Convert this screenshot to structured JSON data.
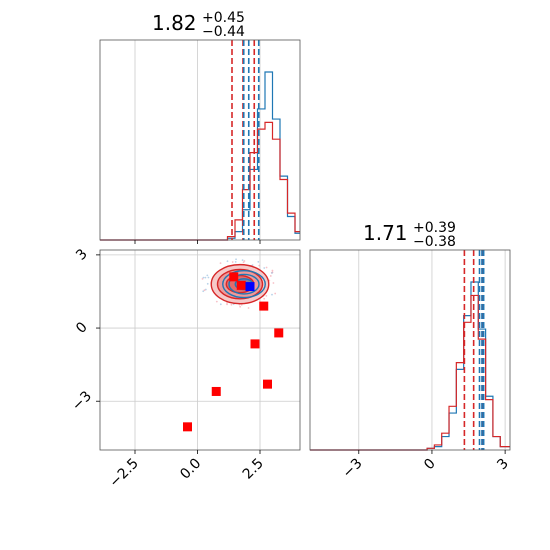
{
  "chart_data": {
    "type": "corner",
    "panels": [
      {
        "name": "marginal-param-1",
        "type": "histogram",
        "title": {
          "value": "1.82",
          "plus": "+0.45",
          "minus": "−0.44"
        },
        "x_range": [
          -3.9,
          4.1
        ],
        "series": [
          {
            "name": "blue",
            "color": "#1f77b4",
            "edges": [
              -3.9,
              -3.6,
              -3.3,
              -3.0,
              -2.7,
              -2.4,
              -2.1,
              -1.8,
              -1.5,
              -1.2,
              -0.9,
              -0.6,
              -0.3,
              0.0,
              0.3,
              0.6,
              0.9,
              1.2,
              1.5,
              1.8,
              2.1,
              2.4,
              2.7,
              3.0,
              3.3,
              3.6,
              3.9,
              4.1
            ],
            "counts": [
              0,
              0,
              0,
              0,
              0,
              0,
              0,
              0,
              0,
              0,
              0,
              0,
              0,
              0,
              0,
              0,
              0,
              0.01,
              0.05,
              0.18,
              0.42,
              0.78,
              1.0,
              0.72,
              0.38,
              0.14,
              0.04
            ]
          },
          {
            "name": "red",
            "color": "#d62728",
            "edges": [
              -3.9,
              -3.6,
              -3.3,
              -3.0,
              -2.7,
              -2.4,
              -2.1,
              -1.8,
              -1.5,
              -1.2,
              -0.9,
              -0.6,
              -0.3,
              0.0,
              0.3,
              0.6,
              0.9,
              1.2,
              1.5,
              1.8,
              2.1,
              2.4,
              2.7,
              3.0,
              3.3,
              3.6,
              3.9,
              4.1
            ],
            "counts": [
              0,
              0,
              0,
              0,
              0,
              0,
              0,
              0,
              0,
              0,
              0,
              0,
              0,
              0,
              0,
              0,
              0,
              0.02,
              0.12,
              0.3,
              0.52,
              0.66,
              0.7,
              0.6,
              0.36,
              0.16,
              0.05
            ]
          }
        ],
        "quantile_lines": [
          {
            "color": "#d62728",
            "x": [
              1.38,
              1.82,
              2.27
            ]
          },
          {
            "color": "#1f77b4",
            "x": [
              1.85,
              2.05,
              2.45
            ]
          }
        ]
      },
      {
        "name": "joint",
        "type": "scatter-contour",
        "x_range": [
          -3.9,
          4.1
        ],
        "y_range": [
          -5.0,
          3.2
        ],
        "xticks": [
          -2.5,
          0.0,
          2.5
        ],
        "xticklabels": [
          "−2.5",
          "0.0",
          "2.5"
        ],
        "yticks": [
          -3,
          0,
          3
        ],
        "yticklabels": [
          "−3",
          "0",
          "3"
        ],
        "contour_red": {
          "center": [
            1.7,
            1.8
          ],
          "radii": [
            [
              0.55,
              0.35
            ],
            [
              0.9,
              0.6
            ],
            [
              1.15,
              0.8
            ]
          ],
          "color": "#d62728"
        },
        "contour_blue": {
          "center": [
            1.7,
            1.8
          ],
          "radii": [
            [
              0.35,
              0.22
            ],
            [
              0.6,
              0.4
            ],
            [
              0.85,
              0.55
            ]
          ],
          "color": "#1f77b4"
        },
        "markers": [
          {
            "x": 1.45,
            "y": 2.1,
            "color": "#ff0000"
          },
          {
            "x": 1.75,
            "y": 1.75,
            "color": "#ff0000"
          },
          {
            "x": 2.1,
            "y": 1.7,
            "color": "#0000ff"
          },
          {
            "x": 2.65,
            "y": 0.9,
            "color": "#ff0000"
          },
          {
            "x": 3.25,
            "y": -0.2,
            "color": "#ff0000"
          },
          {
            "x": 2.3,
            "y": -0.65,
            "color": "#ff0000"
          },
          {
            "x": 0.75,
            "y": -2.6,
            "color": "#ff0000"
          },
          {
            "x": 2.8,
            "y": -2.3,
            "color": "#ff0000"
          },
          {
            "x": -0.4,
            "y": -4.05,
            "color": "#ff0000"
          }
        ]
      },
      {
        "name": "marginal-param-2",
        "type": "histogram",
        "title": {
          "value": "1.71",
          "plus": "+0.39",
          "minus": "−0.38"
        },
        "x_range": [
          -5.0,
          3.2
        ],
        "xticks": [
          -3,
          0,
          3
        ],
        "xticklabels": [
          "−3",
          "0",
          "3"
        ],
        "series": [
          {
            "name": "blue",
            "color": "#1f77b4",
            "edges": [
              -5.0,
              -4.7,
              -4.4,
              -4.1,
              -3.8,
              -3.5,
              -3.2,
              -2.9,
              -2.6,
              -2.3,
              -2.0,
              -1.7,
              -1.4,
              -1.1,
              -0.8,
              -0.5,
              -0.2,
              0.1,
              0.4,
              0.7,
              1.0,
              1.3,
              1.6,
              1.9,
              2.2,
              2.5,
              2.8,
              3.2
            ],
            "counts": [
              0,
              0,
              0,
              0,
              0,
              0,
              0,
              0,
              0,
              0,
              0,
              0,
              0,
              0,
              0,
              0,
              0.01,
              0.02,
              0.08,
              0.22,
              0.48,
              0.8,
              1.0,
              0.72,
              0.32,
              0.08,
              0.02
            ]
          },
          {
            "name": "red",
            "color": "#d62728",
            "edges": [
              -5.0,
              -4.7,
              -4.4,
              -4.1,
              -3.8,
              -3.5,
              -3.2,
              -2.9,
              -2.6,
              -2.3,
              -2.0,
              -1.7,
              -1.4,
              -1.1,
              -0.8,
              -0.5,
              -0.2,
              0.1,
              0.4,
              0.7,
              1.0,
              1.3,
              1.6,
              1.9,
              2.2,
              2.5,
              2.8,
              3.2
            ],
            "counts": [
              0,
              0,
              0,
              0,
              0,
              0,
              0,
              0,
              0,
              0,
              0,
              0,
              0,
              0,
              0,
              0,
              0.01,
              0.03,
              0.1,
              0.26,
              0.52,
              0.76,
              0.92,
              0.66,
              0.3,
              0.08,
              0.02
            ]
          }
        ],
        "quantile_lines": [
          {
            "color": "#d62728",
            "x": [
              1.33,
              1.71,
              2.1
            ]
          },
          {
            "color": "#1f77b4",
            "x": [
              1.95,
              2.05,
              2.12
            ]
          }
        ]
      }
    ]
  }
}
